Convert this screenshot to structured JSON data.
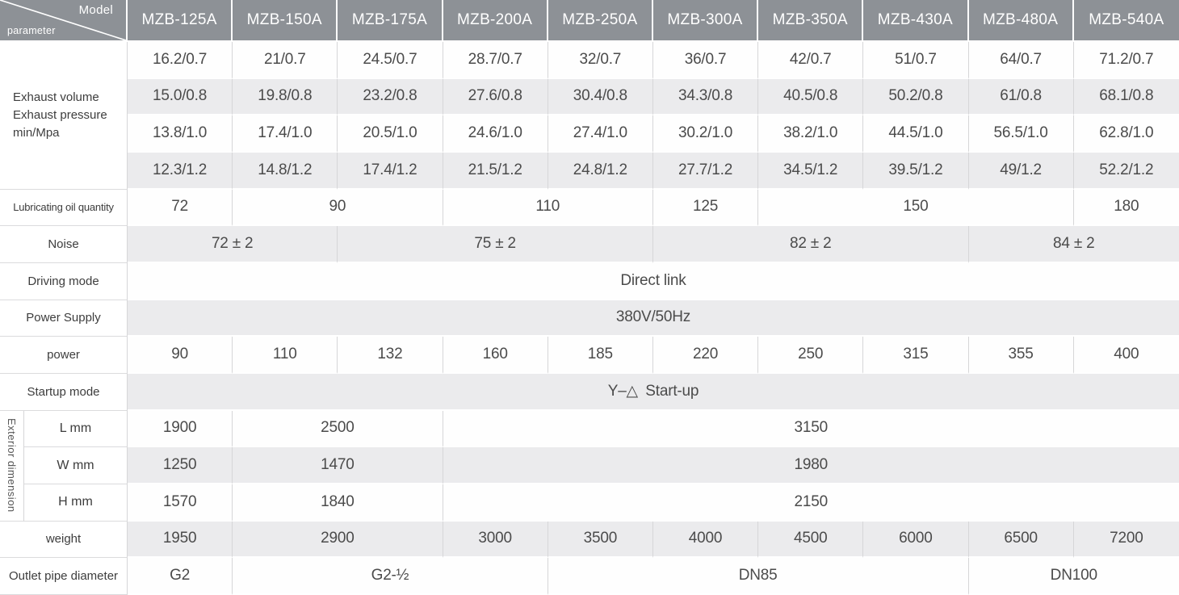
{
  "colors": {
    "header_bg": "#8d9196",
    "row_gray": "#ebebed",
    "row_white": "#fefefe",
    "border_gray": "#d6d6d8",
    "header_text": "#ffffff",
    "data_text": "#4b4b4b"
  },
  "table": {
    "corner": {
      "top_label": "Model",
      "bottom_label": "parameter"
    },
    "model_headers": [
      "MZB-125A",
      "MZB-150A",
      "MZB-175A",
      "MZB-200A",
      "MZB-250A",
      "MZB-300A",
      "MZB-350A",
      "MZB-430A",
      "MZB-480A",
      "MZB-540A"
    ],
    "rows": [
      {
        "name": "exhaust-0-7mpa",
        "shade": "white",
        "label": {
          "lines": [
            "Exhaust volume",
            "Exhaust pressure",
            "min/Mpa"
          ],
          "rowspan": 4,
          "colspan": 2,
          "align": "left"
        },
        "cells": [
          {
            "text": "16.2/0.7",
            "span": 1
          },
          {
            "text": "21/0.7",
            "span": 1
          },
          {
            "text": "24.5/0.7",
            "span": 1
          },
          {
            "text": "28.7/0.7",
            "span": 1
          },
          {
            "text": "32/0.7",
            "span": 1
          },
          {
            "text": "36/0.7",
            "span": 1
          },
          {
            "text": "42/0.7",
            "span": 1
          },
          {
            "text": "51/0.7",
            "span": 1
          },
          {
            "text": "64/0.7",
            "span": 1
          },
          {
            "text": "71.2/0.7",
            "span": 1
          }
        ]
      },
      {
        "name": "exhaust-0-8mpa",
        "shade": "gray",
        "cells": [
          {
            "text": "15.0/0.8",
            "span": 1
          },
          {
            "text": "19.8/0.8",
            "span": 1
          },
          {
            "text": "23.2/0.8",
            "span": 1
          },
          {
            "text": "27.6/0.8",
            "span": 1
          },
          {
            "text": "30.4/0.8",
            "span": 1
          },
          {
            "text": "34.3/0.8",
            "span": 1
          },
          {
            "text": "40.5/0.8",
            "span": 1
          },
          {
            "text": "50.2/0.8",
            "span": 1
          },
          {
            "text": "61/0.8",
            "span": 1
          },
          {
            "text": "68.1/0.8",
            "span": 1
          }
        ]
      },
      {
        "name": "exhaust-1-0mpa",
        "shade": "white",
        "cells": [
          {
            "text": "13.8/1.0",
            "span": 1
          },
          {
            "text": "17.4/1.0",
            "span": 1
          },
          {
            "text": "20.5/1.0",
            "span": 1
          },
          {
            "text": "24.6/1.0",
            "span": 1
          },
          {
            "text": "27.4/1.0",
            "span": 1
          },
          {
            "text": "30.2/1.0",
            "span": 1
          },
          {
            "text": "38.2/1.0",
            "span": 1
          },
          {
            "text": "44.5/1.0",
            "span": 1
          },
          {
            "text": "56.5/1.0",
            "span": 1
          },
          {
            "text": "62.8/1.0",
            "span": 1
          }
        ]
      },
      {
        "name": "exhaust-1-2mpa",
        "shade": "gray",
        "cells": [
          {
            "text": "12.3/1.2",
            "span": 1
          },
          {
            "text": "14.8/1.2",
            "span": 1
          },
          {
            "text": "17.4/1.2",
            "span": 1
          },
          {
            "text": "21.5/1.2",
            "span": 1
          },
          {
            "text": "24.8/1.2",
            "span": 1
          },
          {
            "text": "27.7/1.2",
            "span": 1
          },
          {
            "text": "34.5/1.2",
            "span": 1
          },
          {
            "text": "39.5/1.2",
            "span": 1
          },
          {
            "text": "49/1.2",
            "span": 1
          },
          {
            "text": "52.2/1.2",
            "span": 1
          }
        ]
      },
      {
        "name": "lubricating-oil-quantity",
        "shade": "white",
        "label": {
          "text": "Lubricating oil quantity",
          "colspan": 2,
          "small": true
        },
        "cells": [
          {
            "text": "72",
            "span": 1
          },
          {
            "text": "90",
            "span": 2
          },
          {
            "text": "110",
            "span": 2
          },
          {
            "text": "125",
            "span": 1
          },
          {
            "text": "150",
            "span": 3
          },
          {
            "text": "180",
            "span": 1
          }
        ]
      },
      {
        "name": "noise",
        "shade": "gray",
        "label": {
          "text": "Noise",
          "colspan": 2
        },
        "cells": [
          {
            "text": "72 ± 2",
            "span": 2
          },
          {
            "text": "75 ± 2",
            "span": 3
          },
          {
            "text": "82 ± 2",
            "span": 3
          },
          {
            "text": "84 ± 2",
            "span": 2
          }
        ]
      },
      {
        "name": "driving-mode",
        "shade": "white",
        "label": {
          "text": "Driving mode",
          "colspan": 2
        },
        "cells": [
          {
            "text": "Direct link",
            "span": 10
          }
        ]
      },
      {
        "name": "power-supply",
        "shade": "gray",
        "label": {
          "text": "Power Supply",
          "colspan": 2
        },
        "cells": [
          {
            "text": "380V/50Hz",
            "span": 10
          }
        ]
      },
      {
        "name": "power",
        "shade": "white",
        "label": {
          "text": "power",
          "colspan": 2
        },
        "cells": [
          {
            "text": "90",
            "span": 1
          },
          {
            "text": "110",
            "span": 1
          },
          {
            "text": "132",
            "span": 1
          },
          {
            "text": "160",
            "span": 1
          },
          {
            "text": "185",
            "span": 1
          },
          {
            "text": "220",
            "span": 1
          },
          {
            "text": "250",
            "span": 1
          },
          {
            "text": "315",
            "span": 1
          },
          {
            "text": "355",
            "span": 1
          },
          {
            "text": "400",
            "span": 1
          }
        ]
      },
      {
        "name": "startup-mode",
        "shade": "gray",
        "label": {
          "text": "Startup mode",
          "colspan": 2
        },
        "cells": [
          {
            "text": "Y–△ Start-up",
            "span": 10
          }
        ]
      },
      {
        "name": "dimension-l",
        "shade": "white",
        "vlabel": {
          "text": "Exterior dimension",
          "rowspan": 3
        },
        "sublabel": "L mm",
        "cells": [
          {
            "text": "1900",
            "span": 1
          },
          {
            "text": "2500",
            "span": 2
          },
          {
            "text": "3150",
            "span": 7
          }
        ]
      },
      {
        "name": "dimension-w",
        "shade": "gray",
        "sublabel": "W mm",
        "cells": [
          {
            "text": "1250",
            "span": 1
          },
          {
            "text": "1470",
            "span": 2
          },
          {
            "text": "1980",
            "span": 7
          }
        ]
      },
      {
        "name": "dimension-h",
        "shade": "white",
        "sublabel": "H mm",
        "cells": [
          {
            "text": "1570",
            "span": 1
          },
          {
            "text": "1840",
            "span": 2
          },
          {
            "text": "2150",
            "span": 7
          }
        ]
      },
      {
        "name": "weight",
        "shade": "gray",
        "label": {
          "text": "weight",
          "colspan": 2
        },
        "cells": [
          {
            "text": "1950",
            "span": 1
          },
          {
            "text": "2900",
            "span": 2
          },
          {
            "text": "3000",
            "span": 1
          },
          {
            "text": "3500",
            "span": 1
          },
          {
            "text": "4000",
            "span": 1
          },
          {
            "text": "4500",
            "span": 1
          },
          {
            "text": "6000",
            "span": 1
          },
          {
            "text": "6500",
            "span": 1
          },
          {
            "text": "7200",
            "span": 1
          }
        ]
      },
      {
        "name": "outlet-pipe-diameter",
        "shade": "white",
        "label": {
          "text": "Outlet pipe diameter",
          "colspan": 2
        },
        "cells": [
          {
            "text": "G2",
            "span": 1
          },
          {
            "text": "G2-½",
            "span": 3
          },
          {
            "text": "DN85",
            "span": 4
          },
          {
            "text": "DN100",
            "span": 2
          }
        ]
      }
    ]
  }
}
